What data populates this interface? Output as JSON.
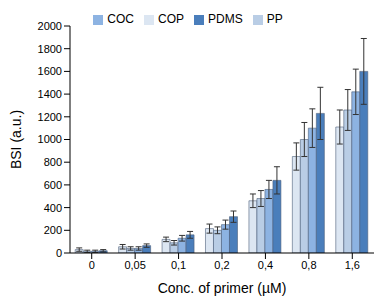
{
  "chart_data": {
    "type": "bar",
    "x_label": "Conc. of primer (µM)",
    "y_label": "BSI (a.u.)",
    "categories": [
      "0",
      "0,05",
      "0,1",
      "0,2",
      "0,4",
      "0,8",
      "1,6"
    ],
    "series": [
      {
        "name": "COP",
        "color": "#dce6f2",
        "values": [
          30,
          55,
          120,
          215,
          460,
          850,
          1110
        ],
        "errors": [
          15,
          20,
          20,
          40,
          60,
          120,
          150
        ]
      },
      {
        "name": "PP",
        "color": "#b9cde5",
        "values": [
          15,
          40,
          90,
          200,
          480,
          1000,
          1260
        ],
        "errors": [
          10,
          15,
          20,
          30,
          70,
          150,
          180
        ]
      },
      {
        "name": "COC",
        "color": "#8db3e2",
        "values": [
          15,
          40,
          130,
          250,
          560,
          1100,
          1420
        ],
        "errors": [
          10,
          15,
          25,
          40,
          80,
          170,
          200
        ]
      },
      {
        "name": "PDMS",
        "color": "#4a7ebb",
        "values": [
          20,
          65,
          160,
          320,
          640,
          1230,
          1600
        ],
        "errors": [
          10,
          15,
          30,
          50,
          120,
          230,
          290
        ]
      }
    ],
    "ylim": [
      0,
      2000
    ],
    "yticks": [
      0,
      200,
      400,
      600,
      800,
      1000,
      1200,
      1400,
      1600,
      1800,
      2000
    ],
    "grid": false,
    "legend": "top"
  }
}
